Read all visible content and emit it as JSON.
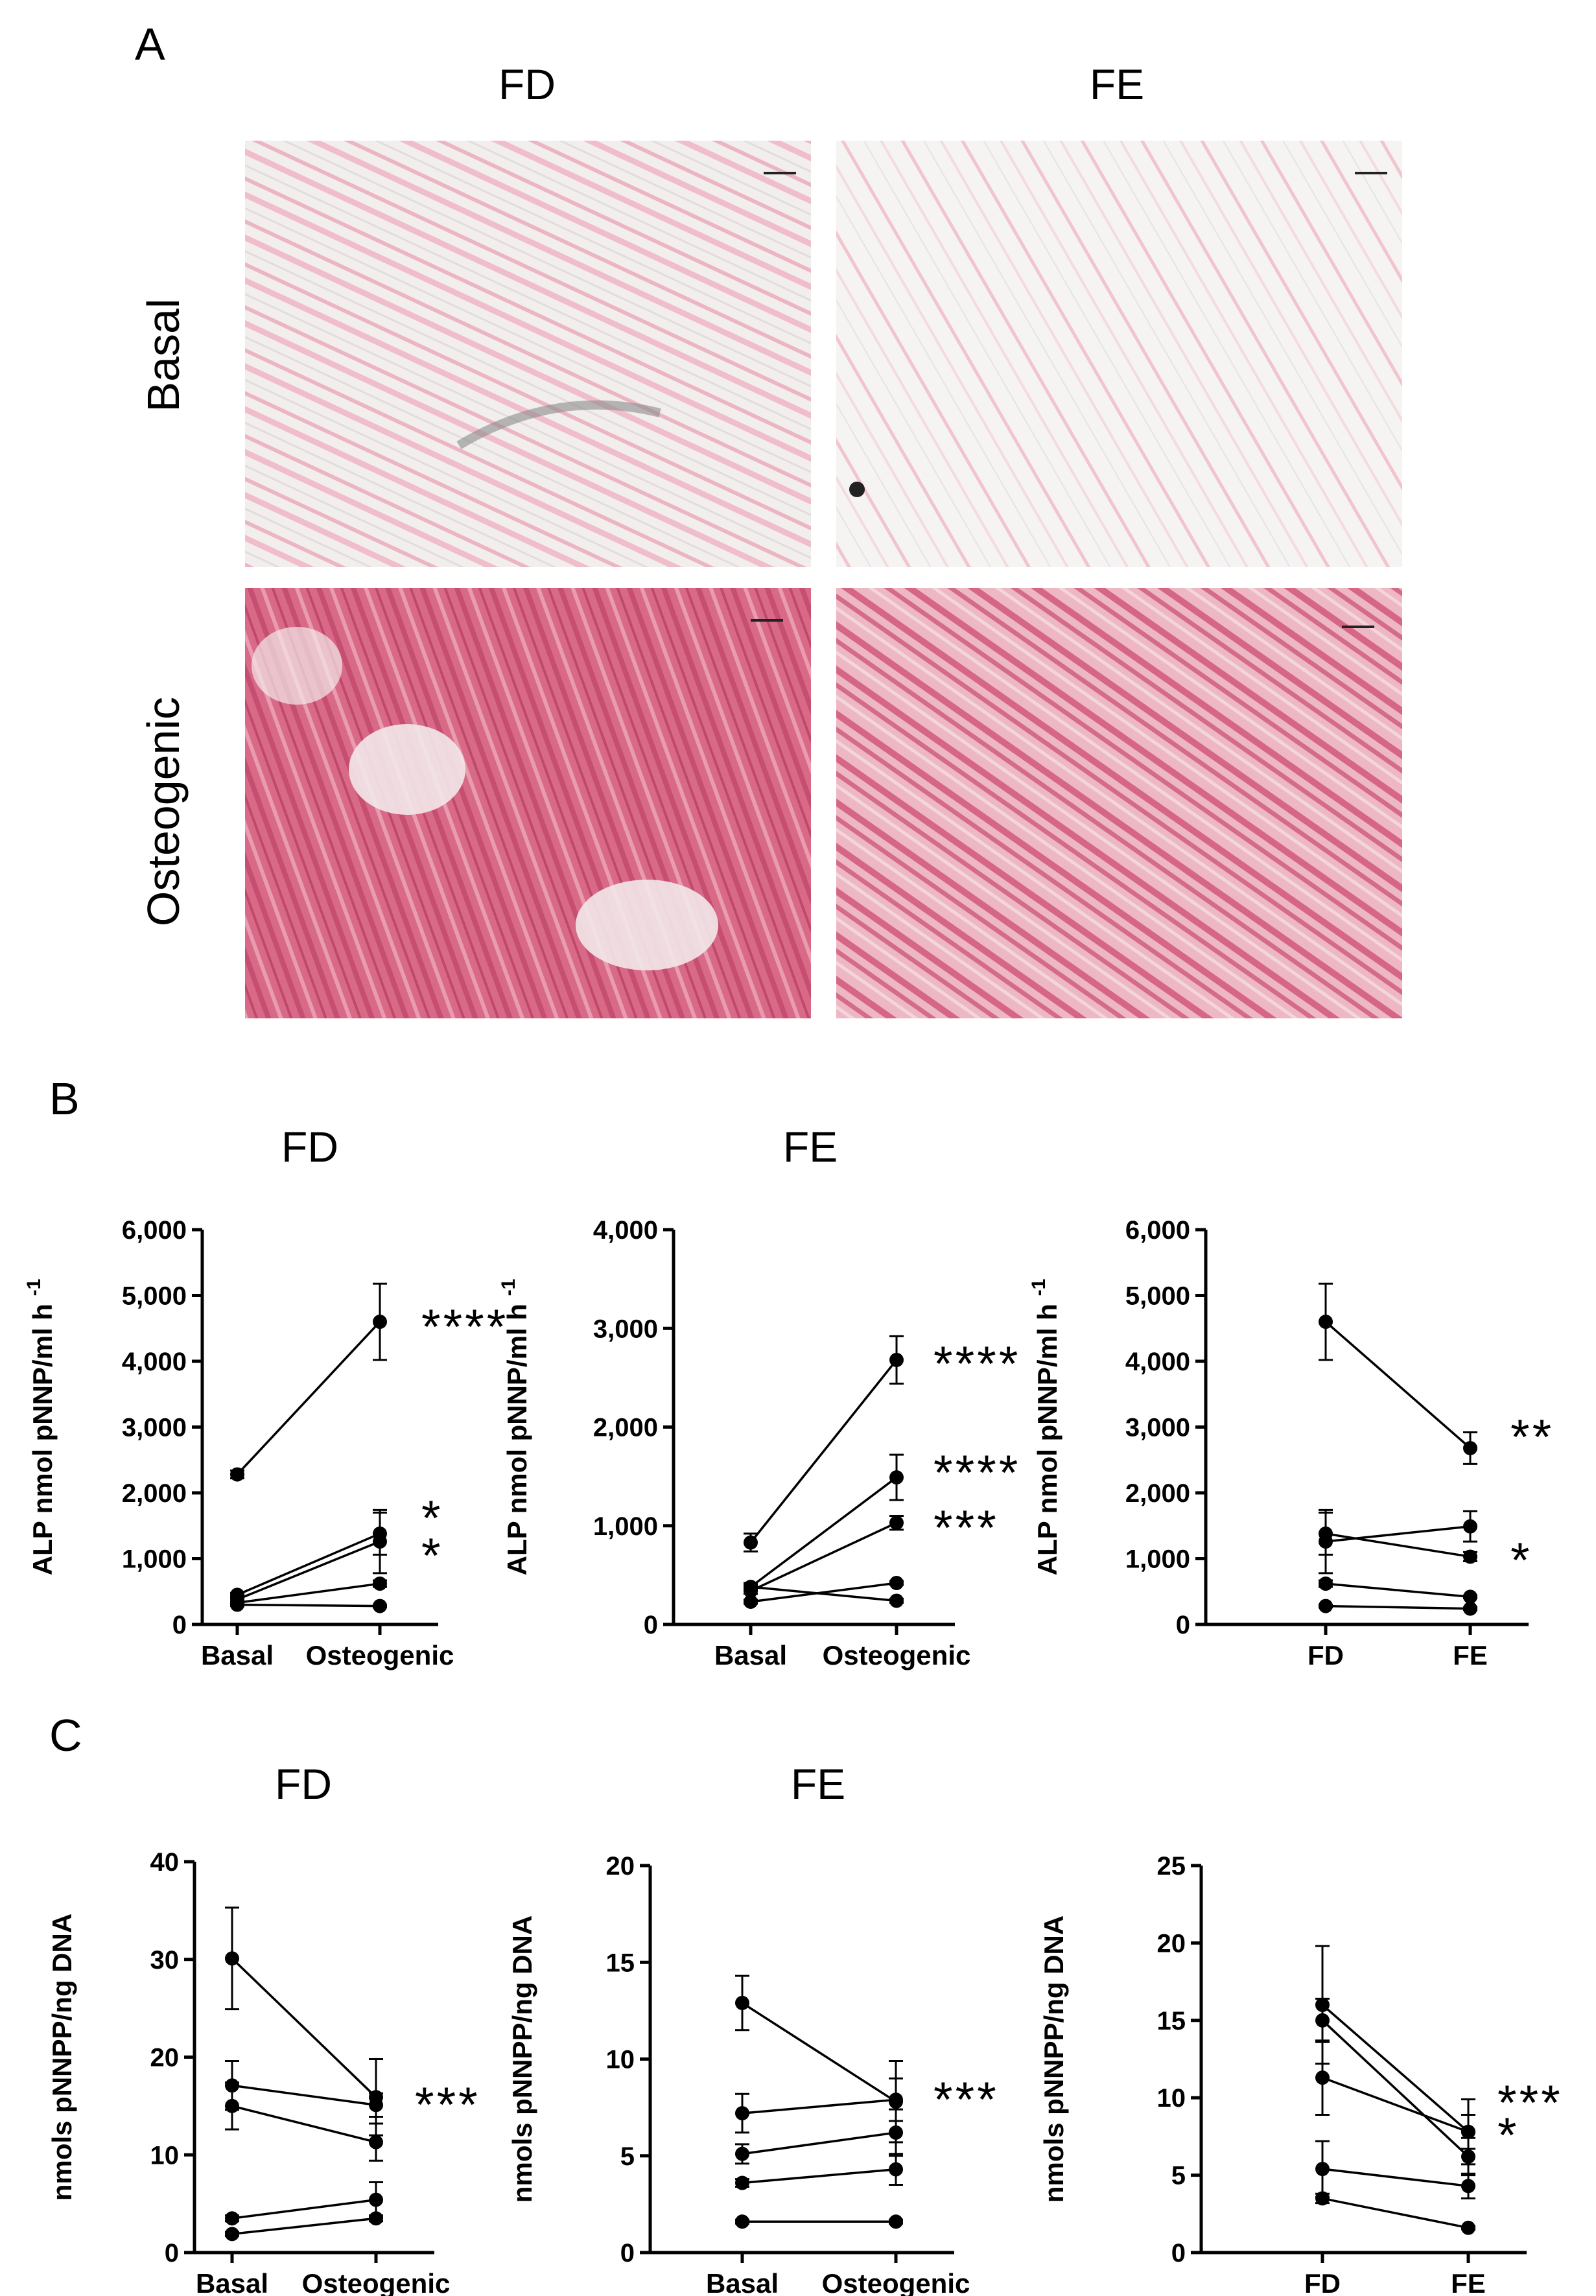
{
  "panel_a": {
    "letter": "A",
    "col_titles": [
      "FD",
      "FE"
    ],
    "row_titles": [
      "Basal",
      "Osteogenic"
    ]
  },
  "panel_b": {
    "letter": "B"
  },
  "panel_c": {
    "letter": "C"
  },
  "chart_data": [
    {
      "id": "B1",
      "type": "line",
      "title": "FD",
      "xlabel": "",
      "ylabel": "ALP nmol pNNP/ml h",
      "ylabel_sup": "-1",
      "ylim": [
        0,
        6000
      ],
      "yticks": [
        0,
        1000,
        2000,
        3000,
        4000,
        5000,
        6000
      ],
      "ytick_labels": [
        "0",
        "1,000",
        "2,000",
        "3,000",
        "4,000",
        "5,000",
        "6,000"
      ],
      "categories": [
        "Basal",
        "Osteogenic"
      ],
      "series": [
        {
          "values": [
            2280,
            4600
          ],
          "err": [
            60,
            580
          ]
        },
        {
          "values": [
            450,
            1380
          ],
          "err": [
            30,
            320
          ]
        },
        {
          "values": [
            380,
            1260
          ],
          "err": [
            30,
            480
          ]
        },
        {
          "values": [
            330,
            620
          ],
          "err": [
            20,
            50
          ]
        },
        {
          "values": [
            300,
            280
          ],
          "err": [
            20,
            20
          ]
        }
      ],
      "annotations": [
        {
          "text": "****",
          "row": 0
        },
        {
          "text": "*",
          "row": 1
        },
        {
          "text": "*",
          "row": 2
        }
      ]
    },
    {
      "id": "B2",
      "type": "line",
      "title": "FE",
      "xlabel": "",
      "ylabel": "ALP nmol pNNP/ml h",
      "ylabel_sup": "-1",
      "ylim": [
        0,
        4000
      ],
      "yticks": [
        0,
        1000,
        2000,
        3000,
        4000
      ],
      "ytick_labels": [
        "0",
        "1,000",
        "2,000",
        "3,000",
        "4,000"
      ],
      "categories": [
        "Basal",
        "Osteogenic"
      ],
      "series": [
        {
          "values": [
            830,
            2680
          ],
          "err": [
            90,
            240
          ]
        },
        {
          "values": [
            380,
            1490
          ],
          "err": [
            40,
            230
          ]
        },
        {
          "values": [
            340,
            1030
          ],
          "err": [
            30,
            70
          ]
        },
        {
          "values": [
            230,
            420
          ],
          "err": [
            20,
            20
          ]
        },
        {
          "values": [
            380,
            240
          ],
          "err": [
            20,
            20
          ]
        }
      ],
      "annotations": [
        {
          "text": "****",
          "row": 0
        },
        {
          "text": "****",
          "row": 1
        },
        {
          "text": "***",
          "row": 2
        }
      ]
    },
    {
      "id": "B3",
      "type": "line",
      "title": "",
      "xlabel": "",
      "ylabel": "ALP nmol pNNP/ml h",
      "ylabel_sup": "-1",
      "ylim": [
        0,
        6000
      ],
      "yticks": [
        0,
        1000,
        2000,
        3000,
        4000,
        5000,
        6000
      ],
      "ytick_labels": [
        "0",
        "1,000",
        "2,000",
        "3,000",
        "4,000",
        "5,000",
        "6,000"
      ],
      "categories": [
        "FD",
        "FE"
      ],
      "series": [
        {
          "values": [
            4600,
            2680
          ],
          "err": [
            580,
            240
          ]
        },
        {
          "values": [
            1380,
            1030
          ],
          "err": [
            320,
            70
          ]
        },
        {
          "values": [
            1260,
            1490
          ],
          "err": [
            480,
            230
          ]
        },
        {
          "values": [
            620,
            420
          ],
          "err": [
            50,
            20
          ]
        },
        {
          "values": [
            280,
            240
          ],
          "err": [
            20,
            20
          ]
        }
      ],
      "annotations": [
        {
          "text": "**",
          "row": 0
        },
        {
          "text": "*",
          "row": 1
        }
      ]
    },
    {
      "id": "C1",
      "type": "line",
      "title": "FD",
      "xlabel": "",
      "ylabel": "nmols pNNPP/ng DNA",
      "ylabel_sup": "",
      "ylim": [
        0,
        40
      ],
      "yticks": [
        0,
        10,
        20,
        30,
        40
      ],
      "ytick_labels": [
        "0",
        "10",
        "20",
        "30",
        "40"
      ],
      "categories": [
        "Basal",
        "Osteogenic"
      ],
      "series": [
        {
          "values": [
            30.1,
            15.9
          ],
          "err": [
            5.2,
            3.9
          ]
        },
        {
          "values": [
            17.1,
            15.1
          ],
          "err": [
            2.5,
            1.2
          ]
        },
        {
          "values": [
            15.0,
            11.3
          ],
          "err": [
            2.4,
            1.9
          ]
        },
        {
          "values": [
            3.5,
            5.4
          ],
          "err": [
            0.3,
            1.8
          ]
        },
        {
          "values": [
            1.9,
            3.5
          ],
          "err": [
            0.2,
            0.3
          ]
        }
      ],
      "annotations": [
        {
          "text": "***",
          "row": 0
        }
      ]
    },
    {
      "id": "C2",
      "type": "line",
      "title": "FE",
      "xlabel": "",
      "ylabel": "nmols pNNPP/ng DNA",
      "ylabel_sup": "",
      "ylim": [
        0,
        20
      ],
      "yticks": [
        0,
        5,
        10,
        15,
        20
      ],
      "ytick_labels": [
        "0",
        "5",
        "10",
        "15",
        "20"
      ],
      "categories": [
        "Basal",
        "Osteogenic"
      ],
      "series": [
        {
          "values": [
            12.9,
            7.8
          ],
          "err": [
            1.4,
            2.1
          ]
        },
        {
          "values": [
            7.2,
            7.9
          ],
          "err": [
            1.0,
            1.1
          ]
        },
        {
          "values": [
            5.1,
            6.2
          ],
          "err": [
            0.5,
            1.2
          ]
        },
        {
          "values": [
            3.6,
            4.3
          ],
          "err": [
            0.2,
            0.8
          ]
        },
        {
          "values": [
            1.6,
            1.6
          ],
          "err": [
            0.1,
            0.1
          ]
        }
      ],
      "annotations": [
        {
          "text": "***",
          "row": 0
        }
      ]
    },
    {
      "id": "C3",
      "type": "line",
      "title": "",
      "xlabel": "",
      "ylabel": "nmols pNNPP/ng DNA",
      "ylabel_sup": "",
      "ylim": [
        0,
        25
      ],
      "yticks": [
        0,
        5,
        10,
        15,
        20,
        25
      ],
      "ytick_labels": [
        "0",
        "5",
        "10",
        "15",
        "20",
        "25"
      ],
      "categories": [
        "FD",
        "FE"
      ],
      "series": [
        {
          "values": [
            16.0,
            7.8
          ],
          "err": [
            3.8,
            2.1
          ]
        },
        {
          "values": [
            15.0,
            6.2
          ],
          "err": [
            1.4,
            1.2
          ]
        },
        {
          "values": [
            11.3,
            7.8
          ],
          "err": [
            2.4,
            1.1
          ]
        },
        {
          "values": [
            5.4,
            4.3
          ],
          "err": [
            1.8,
            0.8
          ]
        },
        {
          "values": [
            3.5,
            1.6
          ],
          "err": [
            0.3,
            0.1
          ]
        }
      ],
      "annotations": [
        {
          "text": "***",
          "row": 0
        },
        {
          "text": "*",
          "row": 1
        }
      ]
    }
  ]
}
